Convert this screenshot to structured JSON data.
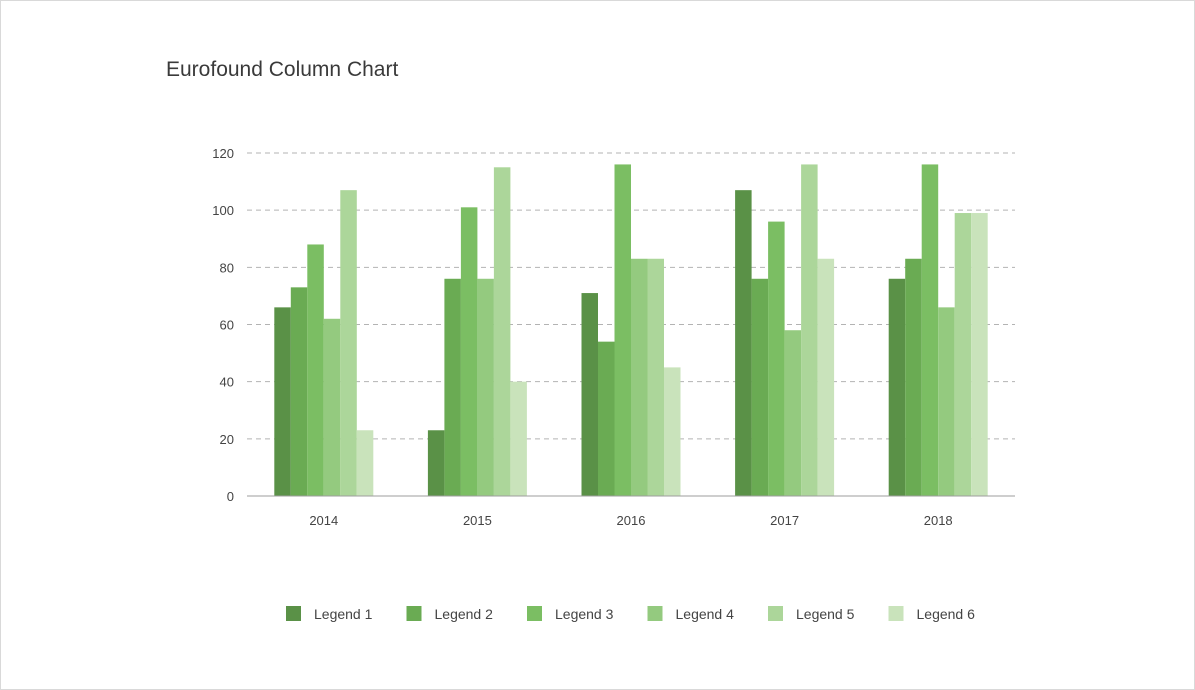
{
  "chart_data": {
    "type": "bar",
    "title": "Eurofound Column Chart",
    "xlabel": "",
    "ylabel": "",
    "categories": [
      "2014",
      "2015",
      "2016",
      "2017",
      "2018"
    ],
    "ylim": [
      0,
      120
    ],
    "yticks": [
      0,
      20,
      40,
      60,
      80,
      100,
      120
    ],
    "grid": true,
    "legend_position": "bottom",
    "series": [
      {
        "name": "Legend 1",
        "color": "#5a9147",
        "values": [
          66,
          23,
          71,
          107,
          76
        ]
      },
      {
        "name": "Legend 2",
        "color": "#6aab53",
        "values": [
          73,
          76,
          54,
          76,
          83
        ]
      },
      {
        "name": "Legend 3",
        "color": "#7bbe63",
        "values": [
          88,
          101,
          116,
          96,
          116
        ]
      },
      {
        "name": "Legend 4",
        "color": "#94ca7f",
        "values": [
          62,
          76,
          83,
          58,
          66
        ]
      },
      {
        "name": "Legend 5",
        "color": "#acd69a",
        "values": [
          107,
          115,
          83,
          116,
          99
        ]
      },
      {
        "name": "Legend 6",
        "color": "#c9e3bb",
        "values": [
          23,
          40,
          45,
          83,
          99
        ]
      }
    ]
  }
}
